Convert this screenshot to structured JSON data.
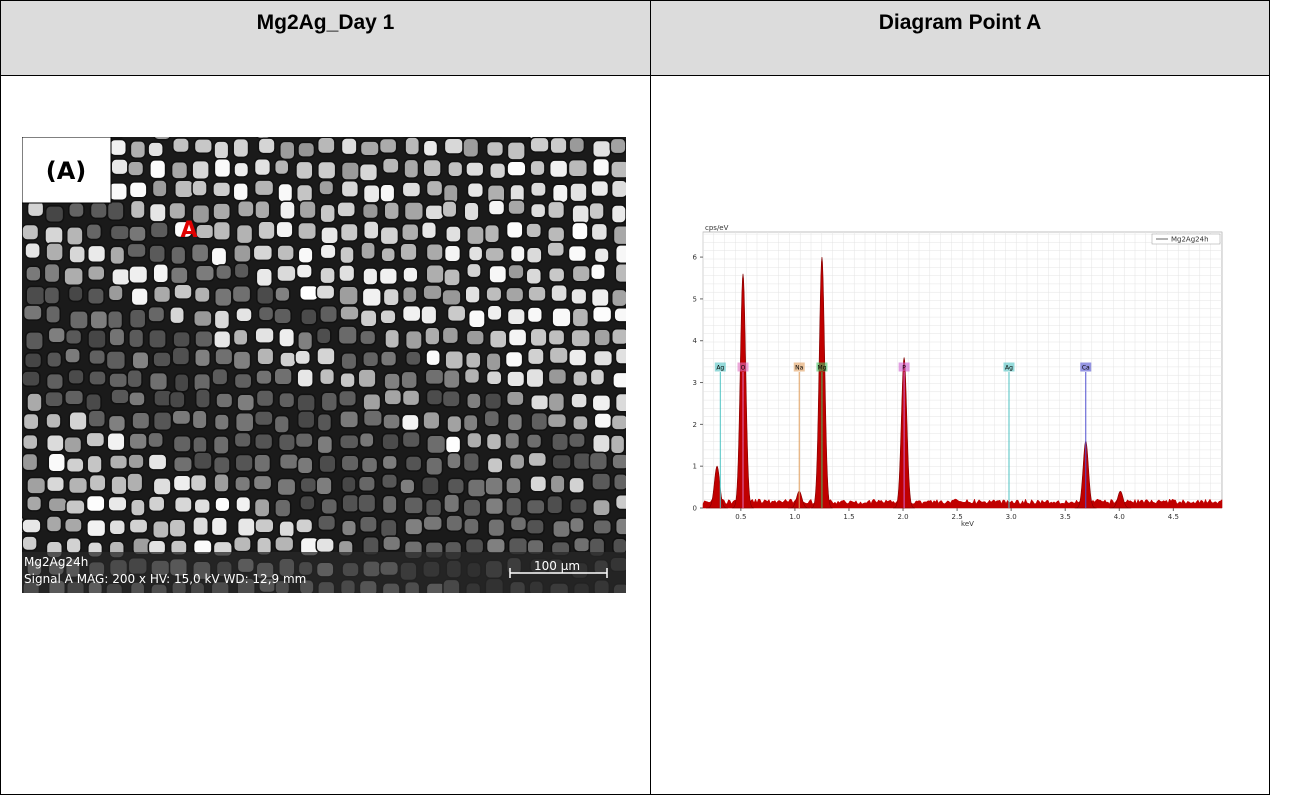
{
  "table": {
    "headers": [
      "Mg2Ag_Day 1",
      "Diagram Point A"
    ]
  },
  "sem_image": {
    "panel_label": "(A)",
    "point_label": "A",
    "sample": "Mg2Ag24h",
    "info": "Signal A  MAG: 200 x  HV: 15,0 kV  WD: 12,9 mm",
    "scale_bar": "100 µm"
  },
  "chart_data": {
    "type": "area",
    "y_label": "cps/eV",
    "x_label": "keV",
    "series": [
      {
        "name": "Mg2Ag24h",
        "color": "#c00000",
        "x": [
          0.28,
          0.52,
          1.04,
          1.25,
          2.01,
          3.69,
          4.01
        ],
        "values": [
          1.0,
          5.6,
          0.4,
          6.0,
          3.6,
          1.6,
          0.4
        ]
      }
    ],
    "elements": [
      {
        "label": "Ag",
        "x": 0.31,
        "color": "#4fc3c3"
      },
      {
        "label": "O",
        "x": 0.52,
        "color": "#e070c0"
      },
      {
        "label": "Na",
        "x": 1.04,
        "color": "#e0a060"
      },
      {
        "label": "Mg",
        "x": 1.25,
        "color": "#40c060"
      },
      {
        "label": "P",
        "x": 2.01,
        "color": "#d060d0"
      },
      {
        "label": "Ag",
        "x": 2.98,
        "color": "#4fc3c3"
      },
      {
        "label": "Ca",
        "x": 3.69,
        "color": "#5050d0"
      }
    ],
    "xlim": [
      0.15,
      4.95
    ],
    "ylim": [
      0,
      6.6
    ],
    "xticks": [
      0.5,
      {
        "value": 1.0,
        "label": "1.0"
      },
      1.5,
      {
        "value": 2.0,
        "label": "2.0"
      },
      2.5,
      {
        "value": 3.0,
        "label": "3.0"
      },
      3.5,
      {
        "value": 4.0,
        "label": "4.0"
      },
      4.5
    ],
    "yticks": [
      0,
      1,
      2,
      3,
      4,
      5,
      6
    ],
    "grid": true
  }
}
